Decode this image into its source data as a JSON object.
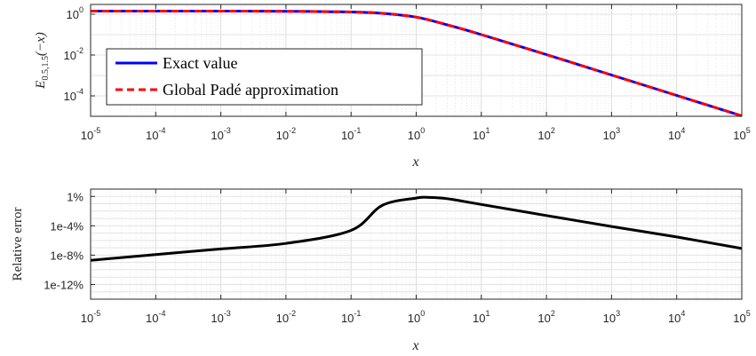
{
  "chart_data": [
    {
      "type": "line",
      "xscale": "log",
      "yscale": "log",
      "xlim": [
        1e-05,
        100000
      ],
      "ylim": [
        1e-05,
        3
      ],
      "xlabel": "x",
      "ylabel": "E0.5,1.5(−x)",
      "ylabel_parts": {
        "base": "E",
        "sub": "0.5,1.5",
        "arg": "(−x)"
      },
      "xticks": {
        "base": "10",
        "exponents": [
          "-5",
          "-4",
          "-3",
          "-2",
          "-1",
          "0",
          "1",
          "2",
          "3",
          "4",
          "5"
        ]
      },
      "yticks": {
        "base": "10",
        "exponents": [
          "0",
          "-2",
          "-4"
        ]
      },
      "grid": true,
      "legend_position": "center-left",
      "series": [
        {
          "name": "Exact value",
          "color": "#0000ff",
          "style": "solid",
          "x": [
            1e-05,
            0.001,
            0.01,
            0.1,
            0.3,
            1,
            3,
            10,
            100,
            1000,
            10000,
            100000
          ],
          "y": [
            1.41,
            1.41,
            1.39,
            1.28,
            1.1,
            0.72,
            0.3,
            0.1,
            0.0105,
            0.00105,
            0.000105,
            1.05e-05
          ]
        },
        {
          "name": "Global Padé approximation",
          "color": "#ff0000",
          "style": "dashed",
          "x": [
            1e-05,
            0.001,
            0.01,
            0.1,
            0.3,
            1,
            3,
            10,
            100,
            1000,
            10000,
            100000
          ],
          "y": [
            1.41,
            1.41,
            1.39,
            1.28,
            1.1,
            0.72,
            0.3,
            0.1,
            0.0105,
            0.00105,
            0.000105,
            1.05e-05
          ]
        }
      ]
    },
    {
      "type": "line",
      "xscale": "log",
      "yscale": "log",
      "xlim": [
        1e-05,
        100000
      ],
      "ylim": [
        1e-16,
        0.1
      ],
      "xlabel": "x",
      "ylabel": "Relative error",
      "xticks": {
        "base": "10",
        "exponents": [
          "-5",
          "-4",
          "-3",
          "-2",
          "-1",
          "0",
          "1",
          "2",
          "3",
          "4",
          "5"
        ]
      },
      "yticks": {
        "values": [
          0.01,
          1e-06,
          1e-10,
          1e-14
        ],
        "labels": [
          "1%",
          "1e-4%",
          "1e-8%",
          "1e-12%"
        ]
      },
      "grid": true,
      "series": [
        {
          "color": "#000000",
          "style": "solid",
          "x": [
            1e-05,
            0.0001,
            0.001,
            0.01,
            0.1,
            0.3,
            1,
            1.5,
            3,
            10,
            100,
            1000,
            10000,
            100000
          ],
          "y": [
            2e-11,
            1.2e-10,
            7e-10,
            4e-09,
            2.4e-07,
            0.0006,
            0.006,
            0.0075,
            0.005,
            0.0008,
            2.5e-05,
            8e-07,
            3e-08,
            8e-10
          ]
        }
      ]
    }
  ]
}
